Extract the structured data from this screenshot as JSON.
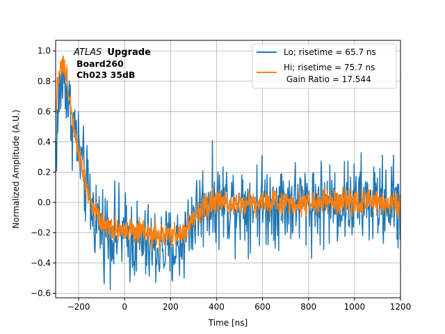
{
  "chart_data": {
    "type": "line",
    "title": "",
    "xlabel": "Time [ns]",
    "ylabel": "Normalized Amplitude (A.U.)",
    "xlim": [
      -300,
      1200
    ],
    "ylim": [
      -0.63,
      1.07
    ],
    "xticks": [
      -200,
      0,
      200,
      400,
      600,
      800,
      1000,
      1200
    ],
    "xtick_labels": [
      "−200",
      "0",
      "200",
      "400",
      "600",
      "800",
      "1000",
      "1200"
    ],
    "yticks": [
      -0.6,
      -0.4,
      -0.2,
      0.0,
      0.2,
      0.4,
      0.6,
      0.8,
      1.0
    ],
    "ytick_labels": [
      "−0.6",
      "−0.4",
      "−0.2",
      "0.0",
      "0.2",
      "0.4",
      "0.6",
      "0.8",
      "1.0"
    ],
    "grid": true,
    "legend_position": "top-right",
    "annotation": {
      "experiment": "ATLAS",
      "experiment_suffix": "Upgrade",
      "board": "Board260",
      "channel": "Ch023 35dB"
    },
    "series": [
      {
        "name": "Lo; risetime = 65.7 ns",
        "color": "#1f77b4",
        "x": [
          -300,
          -280,
          -260,
          -240,
          -220,
          -200,
          -180,
          -160,
          -140,
          -120,
          -100,
          -80,
          -60,
          -40,
          -20,
          0,
          20,
          40,
          60,
          80,
          100,
          120,
          140,
          160,
          180,
          200,
          220,
          240,
          260,
          280,
          300,
          320,
          340,
          360,
          380,
          400,
          450,
          500,
          600,
          700,
          800,
          900,
          1000,
          1100,
          1200
        ],
        "values": [
          0.35,
          0.75,
          0.85,
          0.6,
          0.5,
          0.35,
          0.2,
          0.05,
          -0.05,
          -0.1,
          -0.15,
          -0.18,
          -0.2,
          -0.2,
          -0.2,
          -0.22,
          -0.24,
          -0.25,
          -0.26,
          -0.28,
          -0.3,
          -0.3,
          -0.3,
          -0.3,
          -0.3,
          -0.32,
          -0.3,
          -0.28,
          -0.22,
          -0.15,
          -0.1,
          -0.05,
          -0.02,
          0.0,
          0.0,
          0.0,
          0.0,
          0.0,
          0.0,
          0.0,
          0.0,
          0.0,
          0.0,
          0.0,
          0.0
        ],
        "noise_amplitude": 0.14
      },
      {
        "name": "Hi; risetime = 75.7 ns\n Gain Ratio = 17.544",
        "color": "#ff7f0e",
        "x": [
          -300,
          -290,
          -280,
          -270,
          -260,
          -250,
          -240,
          -230,
          -220,
          -200,
          -180,
          -160,
          -140,
          -120,
          -100,
          -80,
          -60,
          -40,
          -20,
          0,
          20,
          40,
          60,
          80,
          100,
          120,
          140,
          160,
          180,
          200,
          220,
          240,
          260,
          280,
          300,
          320,
          340,
          360,
          380,
          400,
          450,
          500,
          600,
          700,
          800,
          900,
          1000,
          1100,
          1200
        ],
        "values": [
          0.6,
          0.8,
          0.92,
          0.9,
          0.88,
          0.8,
          0.7,
          0.6,
          0.5,
          0.35,
          0.2,
          0.08,
          -0.02,
          -0.08,
          -0.12,
          -0.15,
          -0.16,
          -0.17,
          -0.18,
          -0.18,
          -0.19,
          -0.2,
          -0.2,
          -0.21,
          -0.21,
          -0.22,
          -0.22,
          -0.22,
          -0.22,
          -0.22,
          -0.22,
          -0.21,
          -0.2,
          -0.16,
          -0.1,
          -0.06,
          -0.03,
          -0.01,
          0.0,
          0.0,
          0.0,
          0.0,
          0.0,
          0.0,
          0.0,
          0.0,
          0.0,
          0.0,
          0.0
        ],
        "noise_amplitude": 0.04
      }
    ]
  },
  "legend": {
    "lo_label": "Lo; risetime = 65.7 ns",
    "hi_label_line1": "Hi; risetime = 75.7 ns",
    "hi_label_line2": " Gain Ratio = 17.544"
  }
}
